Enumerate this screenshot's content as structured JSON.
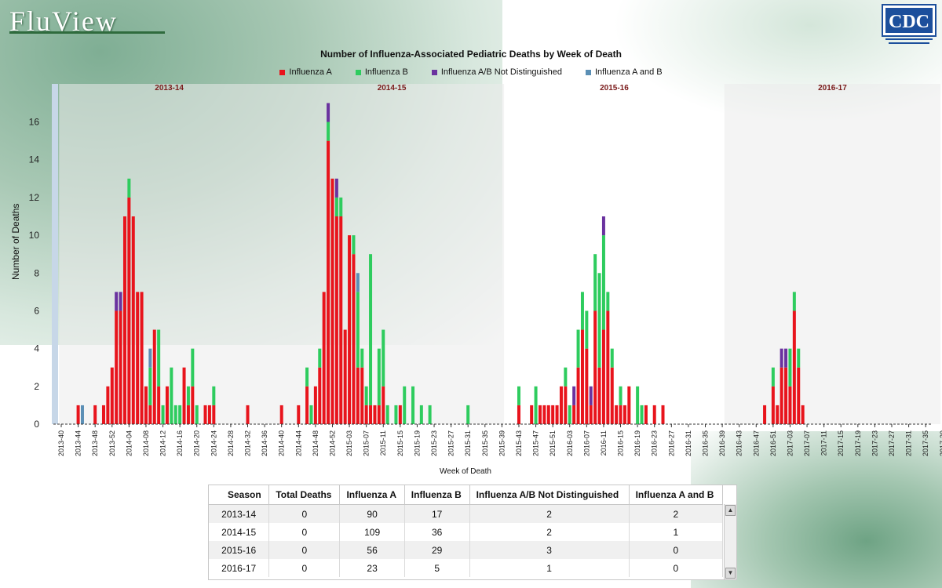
{
  "app": {
    "logo_text": "FluView",
    "agency_logo_text": "CDC"
  },
  "chart_data": {
    "type": "bar",
    "stacked": true,
    "title": "Number of Influenza-Associated Pediatric Deaths by Week of Death",
    "xlabel": "Week of Death",
    "ylabel": "Number of Deaths",
    "ylim": [
      0,
      17.6
    ],
    "yticks": [
      0,
      2,
      4,
      6,
      8,
      10,
      12,
      14,
      16
    ],
    "legend_position": "top",
    "legend": [
      "Influenza A",
      "Influenza B",
      "Influenza A/B Not Distinguished",
      "Influenza A and B"
    ],
    "colors": {
      "Influenza A": "#e8141c",
      "Influenza B": "#2ecc5e",
      "Influenza A/B Not Distinguished": "#6a329f",
      "Influenza A and B": "#5b8fb5"
    },
    "start_week": "2013-40",
    "week_count": 208,
    "tick_labels": [
      "2013-40",
      "2013-44",
      "2013-48",
      "2013-52",
      "2014-04",
      "2014-08",
      "2014-12",
      "2014-16",
      "2014-20",
      "2014-24",
      "2014-28",
      "2014-32",
      "2014-36",
      "2014-40",
      "2014-44",
      "2014-48",
      "2014-52",
      "2015-03",
      "2015-07",
      "2015-11",
      "2015-15",
      "2015-19",
      "2015-23",
      "2015-27",
      "2015-31",
      "2015-35",
      "2015-39",
      "2015-43",
      "2015-47",
      "2015-51",
      "2016-03",
      "2016-07",
      "2016-11",
      "2016-15",
      "2016-19",
      "2016-23",
      "2016-27",
      "2016-31",
      "2016-35",
      "2016-39",
      "2016-43",
      "2016-47",
      "2016-51",
      "2017-03",
      "2017-07",
      "2017-11",
      "2017-15",
      "2017-19",
      "2017-23",
      "2017-27",
      "2017-31",
      "2017-35",
      "2017-39"
    ],
    "seasons": [
      {
        "label": "2013-14",
        "start_week": "2013-40",
        "weeks": 52
      },
      {
        "label": "2014-15",
        "start_week": "2014-40",
        "weeks": 53
      },
      {
        "label": "2015-16",
        "start_week": "2015-40",
        "weeks": 52
      },
      {
        "label": "2016-17",
        "start_week": "2016-40",
        "weeks": 51
      }
    ],
    "bars": [
      {
        "week": "2013-44",
        "a": 1,
        "b": 0,
        "nd": 0,
        "ab": 0
      },
      {
        "week": "2013-45",
        "a": 0,
        "b": 0,
        "nd": 0,
        "ab": 1
      },
      {
        "week": "2013-48",
        "a": 1,
        "b": 0,
        "nd": 0,
        "ab": 0
      },
      {
        "week": "2013-50",
        "a": 1,
        "b": 0,
        "nd": 0,
        "ab": 0
      },
      {
        "week": "2013-51",
        "a": 2,
        "b": 0,
        "nd": 0,
        "ab": 0
      },
      {
        "week": "2013-52",
        "a": 3,
        "b": 0,
        "nd": 0,
        "ab": 0
      },
      {
        "week": "2014-01",
        "a": 6,
        "b": 0,
        "nd": 1,
        "ab": 0
      },
      {
        "week": "2014-02",
        "a": 6,
        "b": 0,
        "nd": 1,
        "ab": 0
      },
      {
        "week": "2014-03",
        "a": 11,
        "b": 0,
        "nd": 0,
        "ab": 0
      },
      {
        "week": "2014-04",
        "a": 12,
        "b": 1,
        "nd": 0,
        "ab": 0
      },
      {
        "week": "2014-05",
        "a": 11,
        "b": 0,
        "nd": 0,
        "ab": 0
      },
      {
        "week": "2014-06",
        "a": 7,
        "b": 0,
        "nd": 0,
        "ab": 0
      },
      {
        "week": "2014-07",
        "a": 7,
        "b": 0,
        "nd": 0,
        "ab": 0
      },
      {
        "week": "2014-08",
        "a": 2,
        "b": 0,
        "nd": 0,
        "ab": 0
      },
      {
        "week": "2014-09",
        "a": 1,
        "b": 2,
        "nd": 0,
        "ab": 1
      },
      {
        "week": "2014-10",
        "a": 5,
        "b": 0,
        "nd": 0,
        "ab": 0
      },
      {
        "week": "2014-11",
        "a": 2,
        "b": 3,
        "nd": 0,
        "ab": 0
      },
      {
        "week": "2014-12",
        "a": 0,
        "b": 1,
        "nd": 0,
        "ab": 0
      },
      {
        "week": "2014-13",
        "a": 2,
        "b": 0,
        "nd": 0,
        "ab": 0
      },
      {
        "week": "2014-14",
        "a": 0,
        "b": 3,
        "nd": 0,
        "ab": 0
      },
      {
        "week": "2014-15",
        "a": 0,
        "b": 1,
        "nd": 0,
        "ab": 0
      },
      {
        "week": "2014-16",
        "a": 0,
        "b": 1,
        "nd": 0,
        "ab": 0
      },
      {
        "week": "2014-17",
        "a": 3,
        "b": 0,
        "nd": 0,
        "ab": 0
      },
      {
        "week": "2014-18",
        "a": 1,
        "b": 1,
        "nd": 0,
        "ab": 0
      },
      {
        "week": "2014-19",
        "a": 2,
        "b": 2,
        "nd": 0,
        "ab": 0
      },
      {
        "week": "2014-20",
        "a": 0,
        "b": 1,
        "nd": 0,
        "ab": 0
      },
      {
        "week": "2014-22",
        "a": 1,
        "b": 0,
        "nd": 0,
        "ab": 0
      },
      {
        "week": "2014-23",
        "a": 1,
        "b": 0,
        "nd": 0,
        "ab": 0
      },
      {
        "week": "2014-24",
        "a": 1,
        "b": 1,
        "nd": 0,
        "ab": 0
      },
      {
        "week": "2014-32",
        "a": 1,
        "b": 0,
        "nd": 0,
        "ab": 0
      },
      {
        "week": "2014-40",
        "a": 1,
        "b": 0,
        "nd": 0,
        "ab": 0
      },
      {
        "week": "2014-44",
        "a": 1,
        "b": 0,
        "nd": 0,
        "ab": 0
      },
      {
        "week": "2014-46",
        "a": 2,
        "b": 1,
        "nd": 0,
        "ab": 0
      },
      {
        "week": "2014-47",
        "a": 0,
        "b": 1,
        "nd": 0,
        "ab": 0
      },
      {
        "week": "2014-48",
        "a": 2,
        "b": 0,
        "nd": 0,
        "ab": 0
      },
      {
        "week": "2014-49",
        "a": 3,
        "b": 1,
        "nd": 0,
        "ab": 0
      },
      {
        "week": "2014-50",
        "a": 7,
        "b": 0,
        "nd": 0,
        "ab": 0
      },
      {
        "week": "2014-51",
        "a": 15,
        "b": 1,
        "nd": 1,
        "ab": 0
      },
      {
        "week": "2014-52",
        "a": 13,
        "b": 0,
        "nd": 0,
        "ab": 0
      },
      {
        "week": "2014-53",
        "a": 11,
        "b": 1,
        "nd": 1,
        "ab": 0
      },
      {
        "week": "2015-01",
        "a": 11,
        "b": 1,
        "nd": 0,
        "ab": 0
      },
      {
        "week": "2015-02",
        "a": 5,
        "b": 0,
        "nd": 0,
        "ab": 0
      },
      {
        "week": "2015-03",
        "a": 10,
        "b": 0,
        "nd": 0,
        "ab": 0
      },
      {
        "week": "2015-04",
        "a": 9,
        "b": 1,
        "nd": 0,
        "ab": 0
      },
      {
        "week": "2015-05",
        "a": 3,
        "b": 4,
        "nd": 0,
        "ab": 1
      },
      {
        "week": "2015-06",
        "a": 3,
        "b": 1,
        "nd": 0,
        "ab": 0
      },
      {
        "week": "2015-07",
        "a": 1,
        "b": 1,
        "nd": 0,
        "ab": 0
      },
      {
        "week": "2015-08",
        "a": 1,
        "b": 8,
        "nd": 0,
        "ab": 0
      },
      {
        "week": "2015-09",
        "a": 1,
        "b": 0,
        "nd": 0,
        "ab": 0
      },
      {
        "week": "2015-10",
        "a": 1,
        "b": 3,
        "nd": 0,
        "ab": 0
      },
      {
        "week": "2015-11",
        "a": 2,
        "b": 3,
        "nd": 0,
        "ab": 0
      },
      {
        "week": "2015-12",
        "a": 0,
        "b": 1,
        "nd": 0,
        "ab": 0
      },
      {
        "week": "2015-14",
        "a": 0,
        "b": 1,
        "nd": 0,
        "ab": 0
      },
      {
        "week": "2015-15",
        "a": 1,
        "b": 0,
        "nd": 0,
        "ab": 0
      },
      {
        "week": "2015-16",
        "a": 0,
        "b": 2,
        "nd": 0,
        "ab": 0
      },
      {
        "week": "2015-18",
        "a": 0,
        "b": 2,
        "nd": 0,
        "ab": 0
      },
      {
        "week": "2015-20",
        "a": 0,
        "b": 1,
        "nd": 0,
        "ab": 0
      },
      {
        "week": "2015-22",
        "a": 0,
        "b": 1,
        "nd": 0,
        "ab": 0
      },
      {
        "week": "2015-31",
        "a": 0,
        "b": 1,
        "nd": 0,
        "ab": 0
      },
      {
        "week": "2015-43",
        "a": 1,
        "b": 1,
        "nd": 0,
        "ab": 0
      },
      {
        "week": "2015-46",
        "a": 1,
        "b": 0,
        "nd": 0,
        "ab": 0
      },
      {
        "week": "2015-47",
        "a": 0,
        "b": 2,
        "nd": 0,
        "ab": 0
      },
      {
        "week": "2015-48",
        "a": 1,
        "b": 0,
        "nd": 0,
        "ab": 0
      },
      {
        "week": "2015-49",
        "a": 1,
        "b": 0,
        "nd": 0,
        "ab": 0
      },
      {
        "week": "2015-50",
        "a": 1,
        "b": 0,
        "nd": 0,
        "ab": 0
      },
      {
        "week": "2015-51",
        "a": 1,
        "b": 0,
        "nd": 0,
        "ab": 0
      },
      {
        "week": "2015-52",
        "a": 1,
        "b": 0,
        "nd": 0,
        "ab": 0
      },
      {
        "week": "2016-01",
        "a": 2,
        "b": 0,
        "nd": 0,
        "ab": 0
      },
      {
        "week": "2016-02",
        "a": 2,
        "b": 1,
        "nd": 0,
        "ab": 0
      },
      {
        "week": "2016-03",
        "a": 0,
        "b": 1,
        "nd": 0,
        "ab": 0
      },
      {
        "week": "2016-04",
        "a": 1,
        "b": 0,
        "nd": 1,
        "ab": 0
      },
      {
        "week": "2016-05",
        "a": 3,
        "b": 2,
        "nd": 0,
        "ab": 0
      },
      {
        "week": "2016-06",
        "a": 5,
        "b": 2,
        "nd": 0,
        "ab": 0
      },
      {
        "week": "2016-07",
        "a": 4,
        "b": 2,
        "nd": 0,
        "ab": 0
      },
      {
        "week": "2016-08",
        "a": 1,
        "b": 0,
        "nd": 1,
        "ab": 0
      },
      {
        "week": "2016-09",
        "a": 6,
        "b": 3,
        "nd": 0,
        "ab": 0
      },
      {
        "week": "2016-10",
        "a": 3,
        "b": 5,
        "nd": 0,
        "ab": 0
      },
      {
        "week": "2016-11",
        "a": 5,
        "b": 5,
        "nd": 1,
        "ab": 0
      },
      {
        "week": "2016-12",
        "a": 6,
        "b": 1,
        "nd": 0,
        "ab": 0
      },
      {
        "week": "2016-13",
        "a": 3,
        "b": 1,
        "nd": 0,
        "ab": 0
      },
      {
        "week": "2016-14",
        "a": 1,
        "b": 0,
        "nd": 0,
        "ab": 0
      },
      {
        "week": "2016-15",
        "a": 1,
        "b": 1,
        "nd": 0,
        "ab": 0
      },
      {
        "week": "2016-16",
        "a": 1,
        "b": 0,
        "nd": 0,
        "ab": 0
      },
      {
        "week": "2016-17",
        "a": 2,
        "b": 0,
        "nd": 0,
        "ab": 0
      },
      {
        "week": "2016-19",
        "a": 0,
        "b": 2,
        "nd": 0,
        "ab": 0
      },
      {
        "week": "2016-20",
        "a": 0,
        "b": 1,
        "nd": 0,
        "ab": 0
      },
      {
        "week": "2016-21",
        "a": 1,
        "b": 0,
        "nd": 0,
        "ab": 0
      },
      {
        "week": "2016-23",
        "a": 1,
        "b": 0,
        "nd": 0,
        "ab": 0
      },
      {
        "week": "2016-25",
        "a": 1,
        "b": 0,
        "nd": 0,
        "ab": 0
      },
      {
        "week": "2016-49",
        "a": 1,
        "b": 0,
        "nd": 0,
        "ab": 0
      },
      {
        "week": "2016-51",
        "a": 2,
        "b": 1,
        "nd": 0,
        "ab": 0
      },
      {
        "week": "2016-52",
        "a": 1,
        "b": 0,
        "nd": 0,
        "ab": 0
      },
      {
        "week": "2017-01",
        "a": 3,
        "b": 0,
        "nd": 1,
        "ab": 0
      },
      {
        "week": "2017-02",
        "a": 3,
        "b": 0,
        "nd": 1,
        "ab": 0
      },
      {
        "week": "2017-03",
        "a": 2,
        "b": 2,
        "nd": 0,
        "ab": 0
      },
      {
        "week": "2017-04",
        "a": 6,
        "b": 1,
        "nd": 0,
        "ab": 0
      },
      {
        "week": "2017-05",
        "a": 3,
        "b": 1,
        "nd": 0,
        "ab": 0
      },
      {
        "week": "2017-06",
        "a": 1,
        "b": 0,
        "nd": 0,
        "ab": 0
      }
    ]
  },
  "table": {
    "columns": [
      "Season",
      "Total Deaths",
      "Influenza A",
      "Influenza B",
      "Influenza A/B Not Distinguished",
      "Influenza A and B"
    ],
    "rows": [
      [
        "2013-14",
        "0",
        "90",
        "17",
        "2",
        "2"
      ],
      [
        "2014-15",
        "0",
        "109",
        "36",
        "2",
        "1"
      ],
      [
        "2015-16",
        "0",
        "56",
        "29",
        "3",
        "0"
      ],
      [
        "2016-17",
        "0",
        "23",
        "5",
        "1",
        "0"
      ]
    ]
  }
}
